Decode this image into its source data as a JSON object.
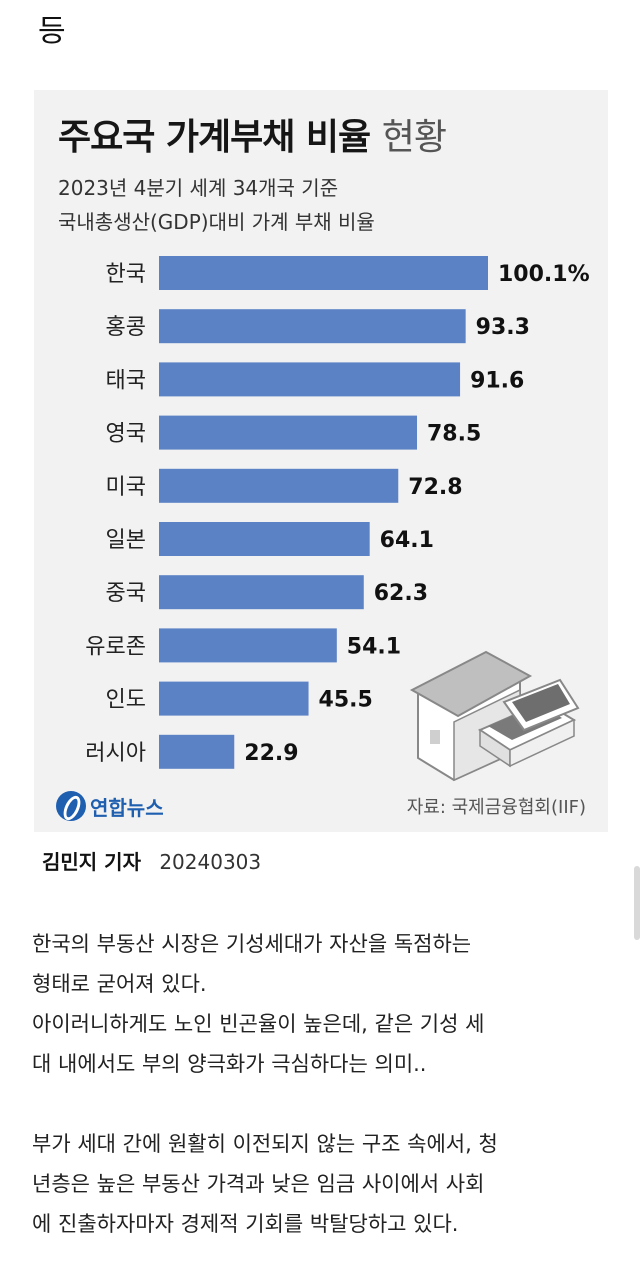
{
  "top_text": "등",
  "chart_data": {
    "type": "bar",
    "orientation": "horizontal",
    "title_bold": "주요국 가계부채 비율",
    "title_light": "현황",
    "subtitle_1": "2023년 4분기 세계 34개국 기준",
    "subtitle_2": "국내총생산(GDP)대비 가계 부채 비율",
    "categories": [
      "한국",
      "홍콩",
      "태국",
      "영국",
      "미국",
      "일본",
      "중국",
      "유로존",
      "인도",
      "러시아"
    ],
    "values": [
      100.1,
      93.3,
      91.6,
      78.5,
      72.8,
      64.1,
      62.3,
      54.1,
      45.5,
      22.9
    ],
    "value_labels": [
      "100.1%",
      "93.3",
      "91.6",
      "78.5",
      "72.8",
      "64.1",
      "62.3",
      "54.1",
      "45.5",
      "22.9"
    ],
    "xlim": [
      0,
      100.1
    ],
    "bar_color": "#5b82c4",
    "grid": false
  },
  "logo_text": "연합뉴스",
  "source": "자료: 국제금융협회(IIF)",
  "byline": {
    "name": "김민지 기자",
    "date": "20240303"
  },
  "article": [
    "한국의 부동산 시장은 기성세대가 자산을 독점하는",
    "형태로 굳어져 있다.",
    "아이러니하게도 노인 빈곤율이 높은데, 같은 기성 세",
    "대 내에서도 부의 양극화가 극심하다는 의미..",
    "",
    "부가 세대 간에 원활히 이전되지 않는 구조 속에서, 청",
    "년층은 높은 부동산 가격과 낮은 임금 사이에서 사회",
    "에 진출하자마자 경제적 기회를 박탈당하고 있다."
  ]
}
